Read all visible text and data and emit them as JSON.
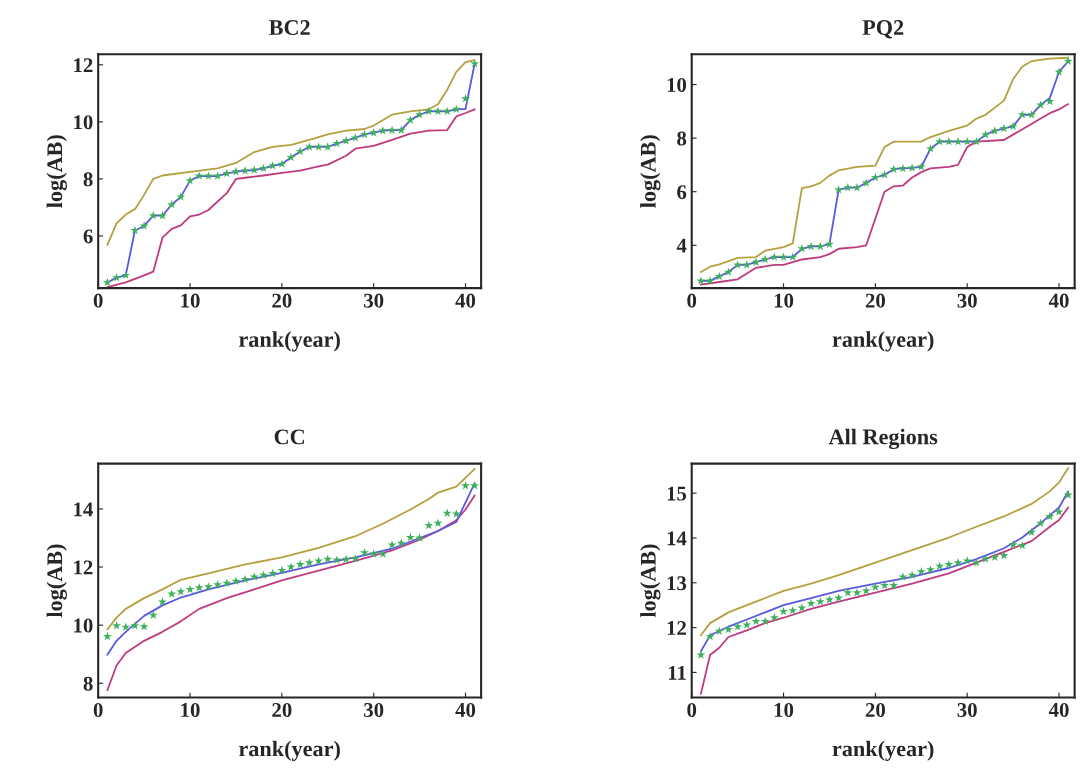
{
  "chart_data": [
    {
      "type": "line",
      "title": "BC2",
      "xlabel": "rank(year)",
      "ylabel": "log(AB)",
      "xlim": [
        0,
        41.7
      ],
      "ylim": [
        4.17,
        12.37
      ],
      "xticks": [
        0,
        10,
        20,
        30,
        40
      ],
      "yticks": [
        6,
        8,
        10,
        12
      ],
      "grid": false,
      "line_style": "solid",
      "series": [
        {
          "color": "#b5a040",
          "x": [
            1,
            2,
            3,
            4,
            5,
            6,
            7,
            10,
            13,
            15,
            17,
            19,
            21,
            23,
            25,
            27,
            29,
            30,
            32,
            34,
            36,
            37,
            38,
            39,
            40,
            41
          ],
          "values": [
            5.69,
            6.44,
            6.75,
            6.94,
            7.44,
            8.0,
            8.12,
            8.25,
            8.37,
            8.56,
            8.94,
            9.12,
            9.19,
            9.37,
            9.56,
            9.69,
            9.75,
            9.87,
            10.25,
            10.37,
            10.44,
            10.62,
            11.12,
            11.75,
            12.09,
            12.16
          ]
        },
        {
          "color": "#c03a80",
          "x": [
            1,
            3,
            5,
            6,
            7,
            8,
            9,
            10,
            11,
            12,
            14,
            15,
            16,
            18,
            20,
            22,
            24,
            25,
            27,
            28,
            30,
            32,
            34,
            36,
            38,
            39,
            40,
            41
          ],
          "values": [
            4.21,
            4.37,
            4.62,
            4.75,
            5.94,
            6.25,
            6.37,
            6.69,
            6.75,
            6.91,
            7.5,
            8.0,
            8.04,
            8.12,
            8.21,
            8.29,
            8.44,
            8.5,
            8.81,
            9.06,
            9.16,
            9.37,
            9.59,
            9.69,
            9.71,
            10.19,
            10.31,
            10.44
          ]
        },
        {
          "color": "#5a5ae0",
          "x": [
            1,
            2,
            3,
            4,
            5,
            6,
            7,
            8,
            9,
            10,
            11,
            12,
            13,
            14,
            15,
            16,
            17,
            18,
            19,
            20,
            21,
            22,
            23,
            24,
            25,
            26,
            27,
            28,
            29,
            30,
            31,
            32,
            33,
            34,
            35,
            36,
            37,
            38,
            39,
            40,
            41
          ],
          "values": [
            4.37,
            4.54,
            4.62,
            6.19,
            6.35,
            6.71,
            6.71,
            7.1,
            7.37,
            7.94,
            8.1,
            8.1,
            8.1,
            8.19,
            8.25,
            8.29,
            8.31,
            8.37,
            8.46,
            8.52,
            8.75,
            8.96,
            9.12,
            9.12,
            9.12,
            9.24,
            9.34,
            9.44,
            9.56,
            9.62,
            9.69,
            9.71,
            9.71,
            10.06,
            10.25,
            10.37,
            10.37,
            10.37,
            10.44,
            10.45,
            12.04
          ]
        },
        {
          "type": "scatter",
          "color": "#3cb05a",
          "marker": "star",
          "x": [
            1,
            2,
            3,
            4,
            5,
            6,
            7,
            8,
            9,
            10,
            11,
            12,
            13,
            14,
            15,
            16,
            17,
            18,
            19,
            20,
            21,
            22,
            23,
            24,
            25,
            26,
            27,
            28,
            29,
            30,
            31,
            32,
            33,
            34,
            35,
            36,
            37,
            38,
            39,
            40,
            41
          ],
          "values": [
            4.37,
            4.54,
            4.62,
            6.19,
            6.35,
            6.71,
            6.71,
            7.1,
            7.37,
            7.94,
            8.1,
            8.1,
            8.1,
            8.19,
            8.25,
            8.29,
            8.31,
            8.37,
            8.46,
            8.52,
            8.75,
            8.96,
            9.12,
            9.12,
            9.12,
            9.24,
            9.34,
            9.44,
            9.56,
            9.62,
            9.69,
            9.71,
            9.71,
            10.06,
            10.25,
            10.37,
            10.37,
            10.37,
            10.44,
            10.81,
            12.04
          ]
        }
      ]
    },
    {
      "type": "line",
      "title": "PQ2",
      "xlabel": "rank(year)",
      "ylabel": "log(AB)",
      "xlim": [
        0,
        41.7
      ],
      "ylim": [
        2.4,
        11.13
      ],
      "xticks": [
        0,
        10,
        20,
        30,
        40
      ],
      "yticks": [
        4,
        6,
        8,
        10
      ],
      "grid": false,
      "line_style": "solid",
      "series": [
        {
          "color": "#b5a040",
          "x": [
            1,
            2,
            3,
            5,
            7,
            8,
            10,
            11,
            12,
            13,
            14,
            15,
            16,
            18,
            20,
            21,
            22,
            25,
            26,
            28,
            30,
            31,
            32,
            34,
            35,
            36,
            37,
            39,
            41
          ],
          "values": [
            3.0,
            3.2,
            3.29,
            3.53,
            3.56,
            3.8,
            3.93,
            4.07,
            6.13,
            6.2,
            6.33,
            6.6,
            6.8,
            6.93,
            6.97,
            7.67,
            7.87,
            7.87,
            8.04,
            8.27,
            8.47,
            8.73,
            8.87,
            9.4,
            10.2,
            10.67,
            10.87,
            10.97,
            11.0
          ]
        },
        {
          "color": "#c03a80",
          "x": [
            1,
            3,
            5,
            7,
            9,
            10,
            12,
            14,
            15,
            16,
            18,
            19,
            20,
            21,
            22,
            23,
            24,
            25,
            26,
            28,
            29,
            30,
            31,
            34,
            35,
            37,
            38,
            39,
            40,
            41
          ],
          "values": [
            2.53,
            2.63,
            2.73,
            3.16,
            3.27,
            3.27,
            3.47,
            3.56,
            3.67,
            3.87,
            3.93,
            4.0,
            5.0,
            6.0,
            6.2,
            6.23,
            6.53,
            6.73,
            6.87,
            6.93,
            7.0,
            7.67,
            7.87,
            7.93,
            8.13,
            8.53,
            8.73,
            8.93,
            9.07,
            9.27
          ]
        },
        {
          "color": "#5a5ae0",
          "x": [
            1,
            2,
            3,
            4,
            5,
            6,
            7,
            8,
            9,
            10,
            11,
            12,
            13,
            14,
            15,
            16,
            17,
            18,
            19,
            20,
            21,
            22,
            23,
            24,
            25,
            26,
            27,
            28,
            29,
            30,
            31,
            32,
            33,
            34,
            35,
            36,
            37,
            38,
            39,
            40,
            41
          ],
          "values": [
            2.67,
            2.67,
            2.84,
            3.0,
            3.27,
            3.27,
            3.37,
            3.47,
            3.56,
            3.56,
            3.56,
            3.87,
            3.96,
            3.96,
            4.04,
            6.07,
            6.15,
            6.15,
            6.33,
            6.53,
            6.63,
            6.84,
            6.87,
            6.89,
            6.93,
            7.6,
            7.87,
            7.87,
            7.87,
            7.87,
            7.87,
            8.13,
            8.27,
            8.36,
            8.44,
            8.87,
            8.87,
            9.24,
            9.5,
            10.47,
            10.87
          ]
        },
        {
          "type": "scatter",
          "color": "#3cb05a",
          "marker": "star",
          "x": [
            1,
            2,
            3,
            4,
            5,
            6,
            7,
            8,
            9,
            10,
            11,
            12,
            13,
            14,
            15,
            16,
            17,
            18,
            19,
            20,
            21,
            22,
            23,
            24,
            25,
            26,
            27,
            28,
            29,
            30,
            31,
            32,
            33,
            34,
            35,
            36,
            37,
            38,
            39,
            40,
            41
          ],
          "values": [
            2.67,
            2.67,
            2.84,
            3.0,
            3.27,
            3.27,
            3.37,
            3.47,
            3.56,
            3.56,
            3.56,
            3.87,
            3.96,
            3.96,
            4.04,
            6.07,
            6.15,
            6.15,
            6.33,
            6.53,
            6.63,
            6.84,
            6.87,
            6.89,
            6.93,
            7.6,
            7.87,
            7.87,
            7.87,
            7.87,
            7.87,
            8.13,
            8.27,
            8.36,
            8.44,
            8.87,
            8.87,
            9.24,
            9.37,
            10.47,
            10.87
          ]
        }
      ]
    },
    {
      "type": "line",
      "title": "CC",
      "xlabel": "rank(year)",
      "ylabel": "log(AB)",
      "xlim": [
        0,
        41.7
      ],
      "ylim": [
        7.51,
        15.56
      ],
      "xticks": [
        0,
        10,
        20,
        30,
        40
      ],
      "yticks": [
        8,
        10,
        12,
        14
      ],
      "grid": false,
      "line_style": "solid",
      "series": [
        {
          "color": "#b5a040",
          "x": [
            1,
            2,
            3,
            5,
            7,
            9,
            12,
            16,
            20,
            24,
            28,
            31,
            34,
            36,
            37,
            39,
            41
          ],
          "values": [
            9.85,
            10.26,
            10.56,
            10.93,
            11.23,
            11.56,
            11.78,
            12.09,
            12.33,
            12.66,
            13.06,
            13.49,
            13.98,
            14.34,
            14.56,
            14.77,
            15.38
          ]
        },
        {
          "color": "#c03a80",
          "x": [
            1,
            2,
            3,
            5,
            7,
            9,
            11,
            14,
            17,
            20,
            24,
            28,
            32,
            35,
            37,
            39,
            40,
            41
          ],
          "values": [
            7.76,
            8.61,
            9.04,
            9.46,
            9.77,
            10.13,
            10.56,
            10.93,
            11.23,
            11.54,
            11.88,
            12.21,
            12.57,
            12.94,
            13.24,
            13.61,
            13.98,
            14.46
          ]
        },
        {
          "color": "#5a5ae0",
          "x": [
            1,
            2,
            3,
            5,
            7,
            9,
            12,
            16,
            20,
            24,
            28,
            32,
            35,
            37,
            39,
            41
          ],
          "values": [
            8.98,
            9.46,
            9.77,
            10.32,
            10.68,
            10.95,
            11.23,
            11.54,
            11.8,
            12.09,
            12.33,
            12.63,
            13.0,
            13.24,
            13.55,
            14.89
          ]
        },
        {
          "type": "scatter",
          "color": "#3cb05a",
          "marker": "star",
          "x": [
            1,
            2,
            3,
            4,
            5,
            6,
            7,
            8,
            9,
            10,
            11,
            12,
            13,
            14,
            15,
            16,
            17,
            18,
            19,
            20,
            21,
            22,
            23,
            24,
            25,
            26,
            27,
            28,
            29,
            30,
            31,
            32,
            33,
            34,
            35,
            36,
            37,
            38,
            39,
            40,
            41
          ],
          "values": [
            9.61,
            9.98,
            9.93,
            9.98,
            9.95,
            10.34,
            10.8,
            11.07,
            11.15,
            11.23,
            11.29,
            11.32,
            11.39,
            11.44,
            11.51,
            11.57,
            11.66,
            11.72,
            11.78,
            11.88,
            12.0,
            12.09,
            12.15,
            12.21,
            12.27,
            12.24,
            12.27,
            12.29,
            12.49,
            12.45,
            12.45,
            12.76,
            12.82,
            13.02,
            13.0,
            13.43,
            13.51,
            13.85,
            13.83,
            14.8,
            14.8
          ]
        }
      ]
    },
    {
      "type": "line",
      "title": "All Regions",
      "xlabel": "rank(year)",
      "ylabel": "log(AB)",
      "xlim": [
        0,
        41.7
      ],
      "ylim": [
        10.44,
        15.66
      ],
      "xticks": [
        0,
        10,
        20,
        30,
        40
      ],
      "yticks": [
        11,
        12,
        13,
        14,
        15
      ],
      "grid": false,
      "line_style": "solid",
      "series": [
        {
          "color": "#b5a040",
          "x": [
            1,
            2,
            4,
            6,
            8,
            10,
            13,
            16,
            20,
            24,
            28,
            31,
            34,
            37,
            39,
            40,
            41
          ],
          "values": [
            11.83,
            12.1,
            12.34,
            12.5,
            12.66,
            12.82,
            12.98,
            13.17,
            13.45,
            13.73,
            14.01,
            14.25,
            14.48,
            14.76,
            15.04,
            15.24,
            15.56
          ]
        },
        {
          "color": "#c03a80",
          "x": [
            1,
            2,
            3,
            4,
            6,
            8,
            10,
            13,
            16,
            20,
            24,
            28,
            31,
            34,
            37,
            39,
            40,
            41
          ],
          "values": [
            10.52,
            11.39,
            11.55,
            11.79,
            11.94,
            12.1,
            12.22,
            12.42,
            12.58,
            12.78,
            12.98,
            13.21,
            13.45,
            13.69,
            13.93,
            14.25,
            14.4,
            14.68
          ]
        },
        {
          "color": "#5a5ae0",
          "x": [
            1,
            2,
            4,
            6,
            8,
            10,
            13,
            16,
            20,
            24,
            28,
            31,
            34,
            36,
            38,
            40,
            41
          ],
          "values": [
            11.47,
            11.83,
            12.02,
            12.18,
            12.34,
            12.5,
            12.66,
            12.82,
            12.98,
            13.13,
            13.33,
            13.53,
            13.77,
            14.01,
            14.33,
            14.68,
            15.04
          ]
        },
        {
          "type": "scatter",
          "color": "#3cb05a",
          "marker": "star",
          "x": [
            1,
            2,
            3,
            4,
            5,
            6,
            7,
            8,
            9,
            10,
            11,
            12,
            13,
            14,
            15,
            16,
            17,
            18,
            19,
            20,
            21,
            22,
            23,
            24,
            25,
            26,
            27,
            28,
            29,
            30,
            31,
            32,
            33,
            34,
            35,
            36,
            37,
            38,
            39,
            40,
            41
          ],
          "values": [
            11.39,
            11.8,
            11.92,
            11.96,
            12.02,
            12.06,
            12.14,
            12.14,
            12.22,
            12.36,
            12.38,
            12.44,
            12.54,
            12.58,
            12.62,
            12.66,
            12.78,
            12.78,
            12.82,
            12.9,
            12.94,
            12.94,
            13.13,
            13.17,
            13.25,
            13.29,
            13.37,
            13.41,
            13.45,
            13.49,
            13.45,
            13.53,
            13.57,
            13.61,
            13.85,
            13.83,
            14.13,
            14.33,
            14.48,
            14.58,
            14.96
          ]
        }
      ]
    }
  ]
}
